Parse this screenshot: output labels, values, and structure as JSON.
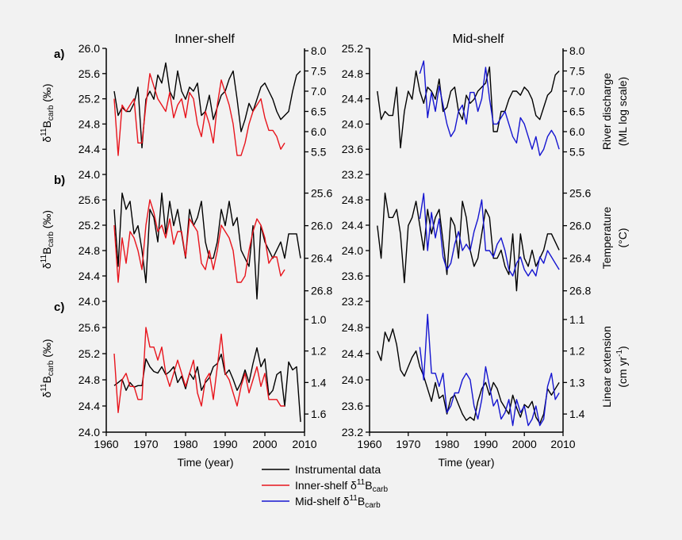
{
  "colors": {
    "instrumental": "#000000",
    "inner": "#e8141c",
    "mid": "#1515d0",
    "background": "#f2f2f2"
  },
  "titles": {
    "inner": "Inner-shelf",
    "mid": "Mid-shelf"
  },
  "legend": [
    {
      "key": "instrumental",
      "label": "Instrumental data"
    },
    {
      "key": "inner",
      "label": "Inner-shelf δ11Bcarb"
    },
    {
      "key": "mid",
      "label": "Mid-shelf δ11Bcarb"
    }
  ],
  "chart_data": {
    "type": "line",
    "x_label": "Time (year)",
    "x_range": [
      1960,
      2010
    ],
    "x_ticks": [
      "1960",
      "1970",
      "1980",
      "1990",
      "2000",
      "2010"
    ],
    "left_axis_label": "δ11Bcarb (‰)",
    "years": [
      1962,
      1963,
      1964,
      1965,
      1966,
      1967,
      1968,
      1969,
      1970,
      1971,
      1972,
      1973,
      1974,
      1975,
      1976,
      1977,
      1978,
      1979,
      1980,
      1981,
      1982,
      1983,
      1984,
      1985,
      1986,
      1987,
      1988,
      1989,
      1990,
      1991,
      1992,
      1993,
      1994,
      1995,
      1996,
      1997,
      1998,
      1999,
      2000,
      2001,
      2002,
      2003,
      2004,
      2005,
      2006,
      2007,
      2008,
      2009
    ],
    "panels": [
      {
        "id": "a",
        "label": "a)",
        "right_axis_label": "River discharge (ML log scale)",
        "inner": {
          "left_range": [
            24.0,
            26.0
          ],
          "left_ticks": [
            "24.0",
            "24.4",
            "24.8",
            "25.2",
            "25.6",
            "26.0"
          ],
          "right_range": [
            5.0,
            8.0
          ],
          "right_ticks": [
            "5.5",
            "6.0",
            "6.5",
            "7.0",
            "7.5",
            "8.0"
          ],
          "instrumental": [
            7.0,
            6.4,
            6.6,
            6.5,
            6.5,
            6.7,
            7.1,
            5.6,
            6.8,
            7.0,
            6.8,
            7.4,
            7.2,
            7.7,
            7.0,
            6.8,
            7.5,
            7.0,
            6.8,
            7.1,
            7.0,
            7.2,
            6.4,
            6.5,
            6.9,
            6.3,
            6.6,
            6.9,
            7.0,
            7.3,
            7.5,
            6.8,
            6.0,
            6.3,
            6.7,
            6.5,
            6.8,
            7.1,
            7.2,
            7.0,
            6.8,
            6.5,
            6.3,
            6.4,
            6.5,
            7.0,
            7.4,
            7.5
          ],
          "proxy": [
            25.2,
            24.3,
            25.1,
            25.0,
            25.1,
            25.2,
            24.5,
            24.5,
            25.1,
            25.6,
            25.4,
            25.2,
            25.1,
            25.0,
            25.3,
            24.9,
            25.1,
            25.2,
            24.9,
            25.3,
            25.2,
            24.8,
            24.6,
            25.0,
            24.8,
            24.5,
            25.1,
            25.5,
            25.3,
            25.1,
            24.8,
            24.3,
            24.3,
            24.5,
            24.8,
            25.0,
            25.1,
            25.2,
            24.9,
            24.7,
            24.7,
            24.6,
            24.4,
            24.5,
            null,
            null,
            null,
            null
          ]
        },
        "mid": {
          "left_range": [
            23.2,
            25.2
          ],
          "left_ticks": [
            "23.2",
            "23.6",
            "24.0",
            "24.4",
            "24.8",
            "25.2"
          ],
          "right_range": [
            5.0,
            8.0
          ],
          "right_ticks": [
            "5.5",
            "6.0",
            "6.5",
            "7.0",
            "7.5",
            "8.0"
          ],
          "instrumental": [
            7.0,
            6.3,
            6.5,
            6.4,
            6.4,
            7.1,
            5.6,
            6.5,
            7.0,
            6.8,
            7.5,
            7.0,
            6.7,
            7.1,
            7.0,
            6.8,
            7.3,
            6.5,
            6.6,
            7.0,
            7.1,
            6.5,
            6.3,
            6.9,
            6.7,
            6.8,
            7.0,
            7.1,
            7.2,
            7.6,
            6.0,
            6.0,
            6.5,
            6.5,
            6.8,
            7.0,
            7.0,
            6.9,
            7.1,
            7.0,
            6.8,
            6.4,
            6.3,
            6.6,
            6.9,
            7.0,
            7.4,
            7.5
          ],
          "proxy": [
            null,
            null,
            null,
            null,
            null,
            null,
            null,
            null,
            null,
            null,
            null,
            24.8,
            25.0,
            24.1,
            24.5,
            24.2,
            24.6,
            24.3,
            24.0,
            23.8,
            23.9,
            24.2,
            24.3,
            24.0,
            24.5,
            24.5,
            24.2,
            24.4,
            24.9,
            24.4,
            24.0,
            24.0,
            24.1,
            24.2,
            24.0,
            23.8,
            23.7,
            24.1,
            24.0,
            23.8,
            23.6,
            23.8,
            23.5,
            23.6,
            23.8,
            23.9,
            23.8,
            23.6
          ]
        }
      },
      {
        "id": "b",
        "label": "b)",
        "right_axis_label": "Temperature (°C)",
        "inner": {
          "left_range": [
            24.0,
            26.0
          ],
          "left_ticks": [
            "24.0",
            "24.4",
            "24.8",
            "25.2",
            "25.6"
          ],
          "right_range": [
            26.9,
            25.4
          ],
          "right_ticks": [
            "25.6",
            "26.0",
            "26.4",
            "26.8"
          ],
          "instrumental": [
            25.8,
            26.5,
            25.6,
            25.8,
            25.7,
            26.1,
            26.0,
            26.3,
            26.7,
            25.8,
            25.9,
            26.2,
            25.6,
            26.1,
            25.7,
            26.0,
            25.8,
            26.1,
            26.4,
            25.8,
            26.0,
            25.9,
            25.7,
            26.2,
            26.4,
            26.4,
            26.2,
            25.8,
            26.0,
            25.7,
            26.0,
            25.9,
            26.3,
            26.4,
            26.5,
            26.0,
            26.9,
            26.0,
            26.2,
            26.3,
            26.4,
            26.3,
            26.2,
            26.4,
            26.1,
            26.1,
            26.1,
            26.4
          ],
          "proxy": [
            25.2,
            24.3,
            25.0,
            24.6,
            25.1,
            25.0,
            24.8,
            24.5,
            25.2,
            25.6,
            25.4,
            25.1,
            25.2,
            25.0,
            25.3,
            24.9,
            25.1,
            25.1,
            24.7,
            25.3,
            25.2,
            25.1,
            24.6,
            24.5,
            24.8,
            24.5,
            24.8,
            25.2,
            25.1,
            25.0,
            24.8,
            24.3,
            24.3,
            24.4,
            24.8,
            25.1,
            25.3,
            25.2,
            25.0,
            24.6,
            24.7,
            24.7,
            24.4,
            24.5,
            null,
            null,
            null,
            null
          ]
        },
        "mid": {
          "left_range": [
            23.2,
            25.2
          ],
          "left_ticks": [
            "23.2",
            "23.6",
            "24.0",
            "24.4",
            "24.8"
          ],
          "right_range": [
            26.9,
            25.4
          ],
          "right_ticks": [
            "25.6",
            "26.0",
            "26.4",
            "26.8"
          ],
          "instrumental": [
            26.0,
            26.4,
            25.6,
            25.9,
            25.9,
            25.8,
            26.1,
            26.7,
            26.0,
            25.9,
            25.7,
            26.0,
            26.3,
            25.8,
            26.1,
            25.9,
            25.8,
            26.2,
            26.6,
            25.9,
            26.0,
            26.4,
            25.7,
            25.9,
            26.3,
            26.5,
            26.4,
            26.1,
            25.8,
            25.9,
            26.4,
            26.4,
            26.3,
            26.5,
            26.6,
            26.1,
            26.8,
            26.1,
            26.4,
            26.5,
            26.3,
            26.5,
            26.4,
            26.3,
            26.1,
            26.1,
            26.2,
            26.3
          ],
          "proxy": [
            null,
            null,
            null,
            null,
            null,
            null,
            null,
            null,
            null,
            null,
            null,
            24.5,
            24.9,
            24.0,
            24.6,
            24.2,
            24.5,
            23.9,
            23.7,
            23.8,
            24.1,
            24.3,
            24.0,
            24.1,
            24.0,
            24.3,
            24.5,
            24.8,
            24.0,
            24.0,
            23.9,
            24.1,
            24.2,
            24.0,
            23.7,
            23.6,
            23.8,
            23.9,
            23.7,
            23.6,
            23.7,
            23.6,
            23.9,
            23.8,
            24.0,
            23.9,
            23.8,
            23.7
          ]
        }
      },
      {
        "id": "c",
        "label": "c)",
        "right_axis_label": "Linear extension (cm yr-1)",
        "inner": {
          "left_range": [
            24.0,
            26.0
          ],
          "left_ticks": [
            "24.0",
            "24.4",
            "24.8",
            "25.2",
            "25.6"
          ],
          "right_range": [
            1.7,
            0.9
          ],
          "right_ticks": [
            "1.0",
            "1.2",
            "1.4",
            "1.6"
          ],
          "instrumental": [
            1.42,
            1.4,
            1.38,
            1.45,
            1.4,
            1.43,
            1.42,
            1.42,
            1.25,
            1.3,
            1.33,
            1.34,
            1.3,
            1.35,
            1.33,
            1.3,
            1.4,
            1.36,
            1.44,
            1.34,
            1.38,
            1.3,
            1.45,
            1.4,
            1.37,
            1.3,
            1.28,
            1.22,
            1.35,
            1.32,
            1.38,
            1.45,
            1.4,
            1.32,
            1.4,
            1.28,
            1.18,
            1.3,
            1.25,
            1.48,
            1.45,
            1.35,
            1.33,
            1.55,
            1.27,
            1.32,
            1.3,
            1.65
          ],
          "proxy": [
            25.2,
            24.3,
            24.8,
            24.9,
            24.7,
            24.7,
            24.5,
            24.5,
            25.6,
            25.3,
            25.3,
            25.1,
            25.3,
            24.9,
            24.7,
            24.9,
            25.1,
            24.9,
            24.7,
            24.9,
            25.1,
            24.6,
            24.4,
            24.8,
            24.9,
            24.5,
            25.0,
            25.5,
            24.9,
            24.8,
            24.6,
            24.4,
            24.7,
            24.9,
            24.6,
            24.8,
            25.0,
            24.7,
            24.9,
            24.5,
            24.5,
            24.5,
            24.4,
            24.4,
            null,
            null,
            null,
            null
          ]
        },
        "mid": {
          "left_range": [
            23.2,
            25.2
          ],
          "left_ticks": [
            "23.2",
            "23.6",
            "24.0",
            "24.4",
            "24.8"
          ],
          "right_range": [
            1.45,
            1.05
          ],
          "right_ticks": [
            "1.1",
            "1.2",
            "1.3",
            "1.4"
          ],
          "instrumental": [
            1.2,
            1.23,
            1.14,
            1.17,
            1.13,
            1.18,
            1.26,
            1.28,
            1.25,
            1.22,
            1.2,
            1.25,
            1.28,
            1.32,
            1.36,
            1.3,
            1.35,
            1.34,
            1.4,
            1.35,
            1.34,
            1.37,
            1.4,
            1.42,
            1.41,
            1.42,
            1.36,
            1.32,
            1.3,
            1.34,
            1.3,
            1.32,
            1.36,
            1.38,
            1.4,
            1.34,
            1.38,
            1.41,
            1.37,
            1.38,
            1.36,
            1.41,
            1.43,
            1.4,
            1.32,
            1.34,
            1.32,
            1.3
          ],
          "proxy": [
            null,
            null,
            null,
            null,
            null,
            null,
            null,
            null,
            null,
            null,
            null,
            24.5,
            24.0,
            25.0,
            24.1,
            24.1,
            23.9,
            24.1,
            23.5,
            23.6,
            23.8,
            23.8,
            24.0,
            24.1,
            24.0,
            23.6,
            23.4,
            23.7,
            24.2,
            23.9,
            23.6,
            23.7,
            23.4,
            23.5,
            23.7,
            23.3,
            23.7,
            23.5,
            23.6,
            23.3,
            23.4,
            23.6,
            23.3,
            23.4,
            23.9,
            24.1,
            23.7,
            23.8
          ]
        }
      }
    ]
  }
}
